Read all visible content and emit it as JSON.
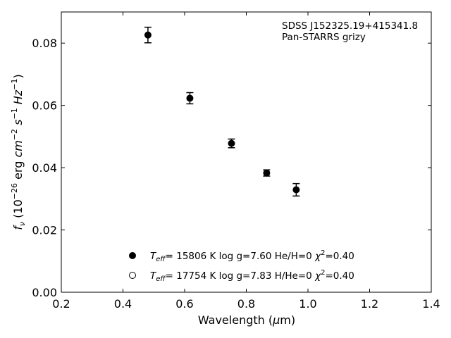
{
  "chart_data": {
    "type": "scatter",
    "xlabel": "Wavelength (μm)",
    "ylabel": "f_ν (10^-26 erg cm^-2 s^-1 Hz^-1)",
    "xlim": [
      0.2,
      1.4
    ],
    "ylim": [
      0.0,
      0.09
    ],
    "x_ticks": [
      "0.2",
      "0.4",
      "0.6",
      "0.8",
      "1.0",
      "1.2",
      "1.4"
    ],
    "y_ticks": [
      "0.00",
      "0.02",
      "0.04",
      "0.06",
      "0.08"
    ],
    "annotation": [
      "SDSS J152325.19+415341.8",
      "Pan-STARRS grizy"
    ],
    "series": [
      {
        "name": "T_eff= 15806 K  log g=7.60  He/H=0  χ²=0.40",
        "marker": "filled-circle",
        "x": [
          0.481,
          0.617,
          0.752,
          0.866,
          0.962
        ],
        "y": [
          0.0826,
          0.0623,
          0.0478,
          0.0383,
          0.0329
        ],
        "yerr": [
          0.0025,
          0.0018,
          0.0014,
          0.001,
          0.002
        ]
      },
      {
        "name": "T_eff= 17754 K  log g=7.83  H/He=0  χ²=0.40",
        "marker": "open-circle",
        "x": [],
        "y": []
      }
    ],
    "legend_entries": [
      {
        "teff": "15806",
        "logg": "7.60",
        "comp": "He/H=0",
        "chi2": "0.40"
      },
      {
        "teff": "17754",
        "logg": "7.83",
        "comp": "H/He=0",
        "chi2": "0.40"
      }
    ],
    "legend_position": "lower-center",
    "grid": false
  }
}
